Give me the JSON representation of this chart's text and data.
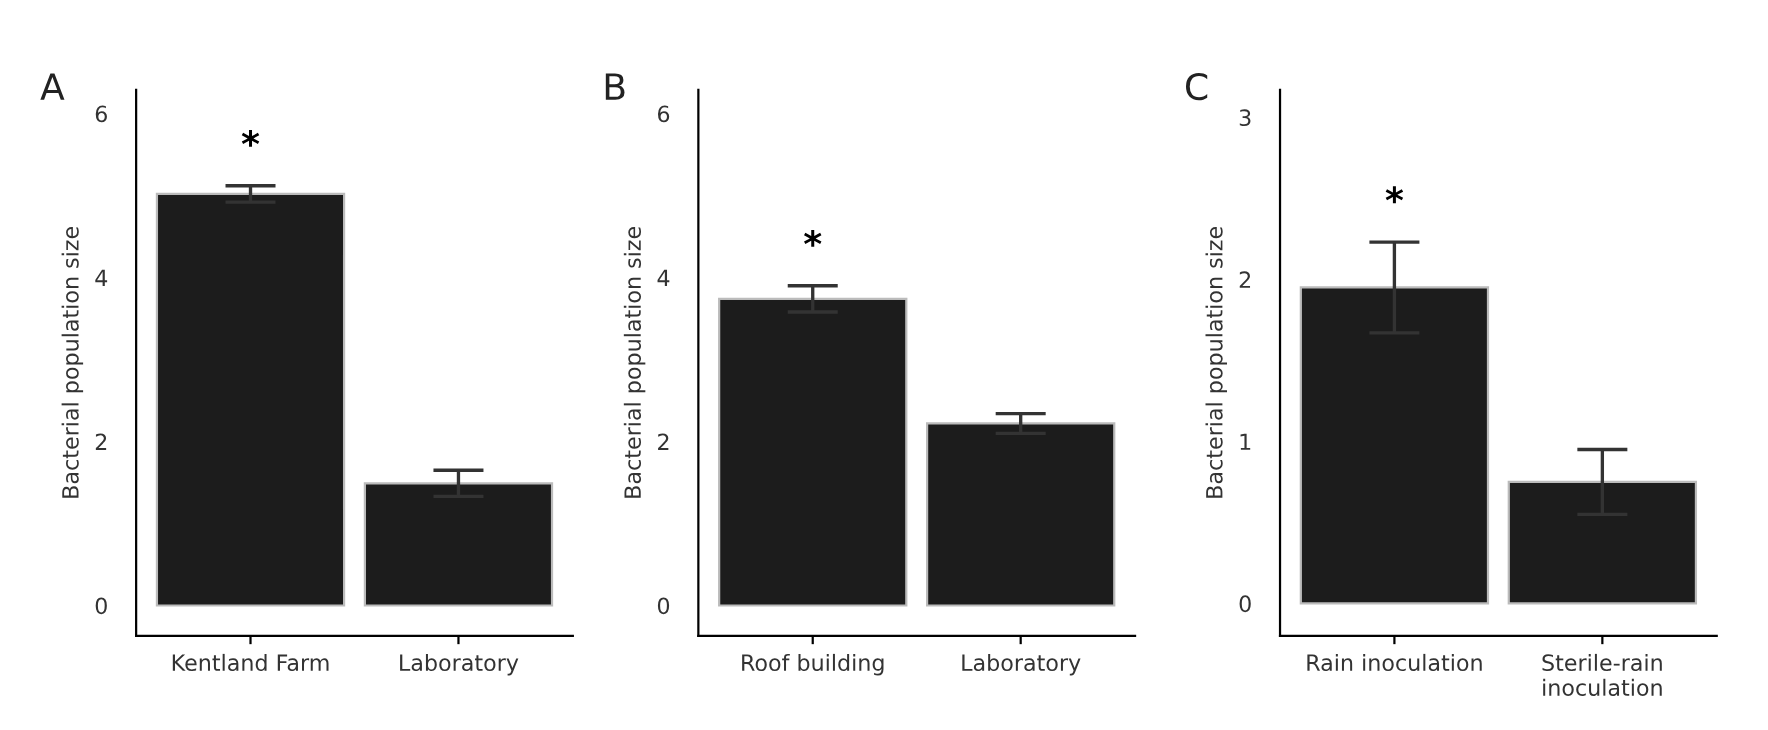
{
  "chart_data": [
    {
      "type": "bar",
      "title": "A",
      "ylabel": "Bacterial population size",
      "categories": [
        "Kentland Farm",
        "Laboratory"
      ],
      "values": [
        5.02,
        1.49
      ],
      "errors": [
        0.1,
        0.16
      ],
      "color": "#1c1c1c",
      "ylim": [
        -0.37,
        6.29
      ],
      "yticks": [
        0,
        2,
        4,
        6
      ],
      "grid": false,
      "annotations": [
        "*"
      ]
    },
    {
      "type": "bar",
      "title": "B",
      "ylabel": "Bacterial population size",
      "categories": [
        "Roof building",
        "Laboratory"
      ],
      "values": [
        3.74,
        2.22
      ],
      "errors": [
        0.16,
        0.12
      ],
      "color": "#1c1c1c",
      "ylim": [
        -0.37,
        6.29
      ],
      "yticks": [
        0,
        2,
        4,
        6
      ],
      "grid": false,
      "annotations": [
        "*"
      ]
    },
    {
      "type": "bar",
      "title": "C",
      "ylabel": "Bacterial population size",
      "categories": [
        "Rain inoculation",
        "Sterile-rain\ninoculation"
      ],
      "values": [
        1.95,
        0.75
      ],
      "errors": [
        0.28,
        0.2
      ],
      "color": "#1c1c1c",
      "ylim": [
        -0.2,
        3.17
      ],
      "yticks": [
        0,
        1,
        2,
        3
      ],
      "grid": false,
      "annotations": [
        "*"
      ]
    }
  ]
}
